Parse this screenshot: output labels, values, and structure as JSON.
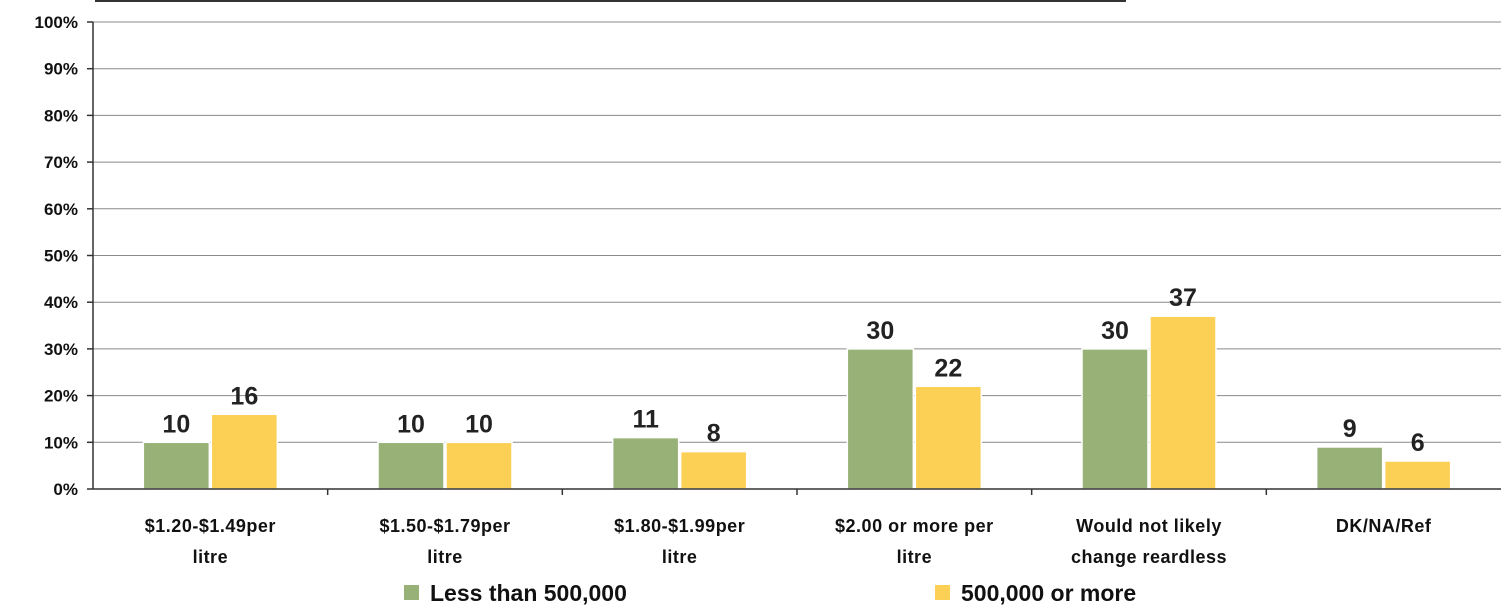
{
  "chart_data": {
    "type": "bar",
    "categories": [
      [
        "$1.20-$1.49per",
        "litre"
      ],
      [
        "$1.50-$1.79per",
        "litre"
      ],
      [
        "$1.80-$1.99per",
        "litre"
      ],
      [
        "$2.00 or more per",
        "litre"
      ],
      [
        "Would not likely",
        "change reardless"
      ],
      [
        "DK/NA/Ref"
      ]
    ],
    "series": [
      {
        "name": "Less than 500,000",
        "color": "#97B177",
        "values": [
          10,
          10,
          11,
          30,
          30,
          9
        ]
      },
      {
        "name": "500,000 or more",
        "color": "#FCCF55",
        "values": [
          16,
          10,
          8,
          22,
          37,
          6
        ]
      }
    ],
    "yticks": [
      "0%",
      "10%",
      "20%",
      "30%",
      "40%",
      "50%",
      "60%",
      "70%",
      "80%",
      "90%",
      "100%"
    ],
    "ylim": [
      0,
      100
    ],
    "grid": true,
    "legend_position": "bottom"
  }
}
